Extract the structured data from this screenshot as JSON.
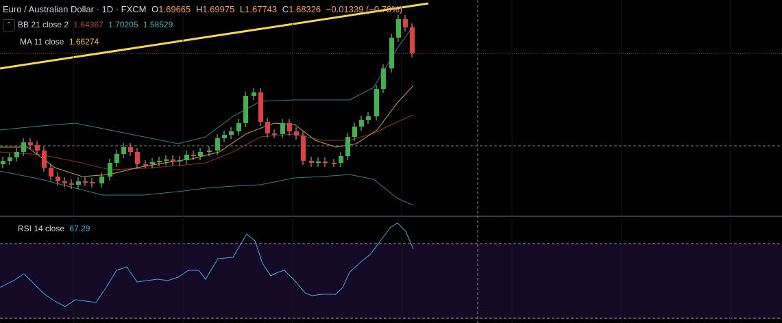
{
  "header": {
    "symbol": "Euro / Australian Dollar · 1D · FXCM",
    "open_label": "O",
    "open": "1.69665",
    "high_label": "H",
    "high": "1.69975",
    "low_label": "L",
    "low": "1.67743",
    "close_label": "C",
    "close": "1.68326",
    "change": "−0.01339 (−0.79%)"
  },
  "indicators": {
    "bb": {
      "label": "BB 21 close 2",
      "basis": "1.64367",
      "upper": "1.70205",
      "lower": "1.58529"
    },
    "ma": {
      "label": "MA 11 close",
      "value": "1.66274"
    },
    "rsi": {
      "label": "RSI 14 close",
      "value": "67.29"
    }
  }
}
